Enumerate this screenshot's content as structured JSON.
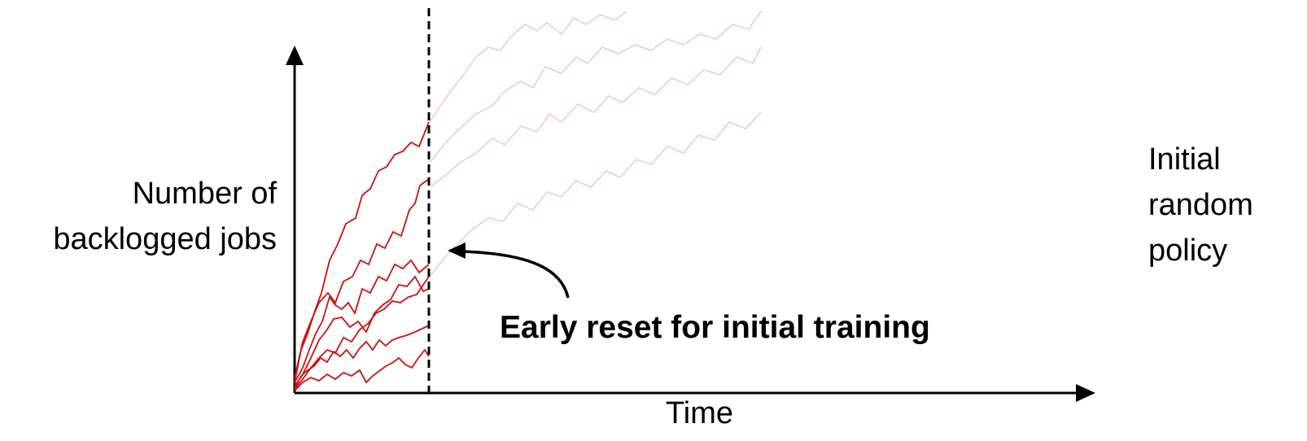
{
  "labels": {
    "y_axis_line1": "Number of",
    "y_axis_line2": "backlogged jobs",
    "x_axis": "Time",
    "policy_line1": "Initial",
    "policy_line2": "random",
    "policy_line3": "policy",
    "annotation": "Early reset for initial training"
  },
  "colors": {
    "axis": "#000000",
    "trajectory": "#cc1111",
    "faded_trajectory": "#f3c9c9",
    "reset_line": "#000000"
  },
  "diagram": {
    "reset_line_style": "dashed",
    "visible_trajectories": 7,
    "faded_trajectories": 4
  }
}
